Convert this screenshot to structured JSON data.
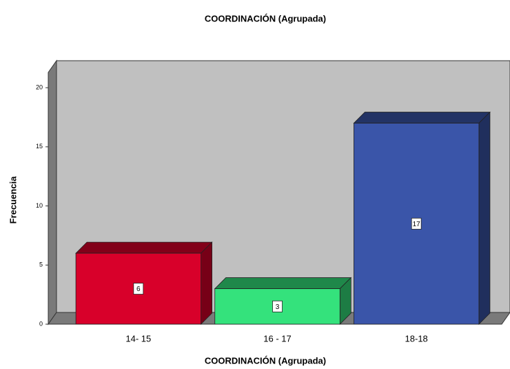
{
  "chart_data": {
    "type": "bar3d",
    "title": "COORDINACIÓN  (Agrupada)",
    "x_label": "COORDINACIÓN  (Agrupada)",
    "y_label": "Frecuencia",
    "categories": [
      "14- 15",
      "16 - 17",
      "18-18"
    ],
    "values": [
      6,
      3,
      17
    ],
    "colors": [
      "#d8002a",
      "#34e27c",
      "#3a55a9"
    ],
    "ylim": [
      0,
      21
    ],
    "yticks": [
      0,
      5,
      10,
      15,
      20
    ],
    "grid": false
  }
}
